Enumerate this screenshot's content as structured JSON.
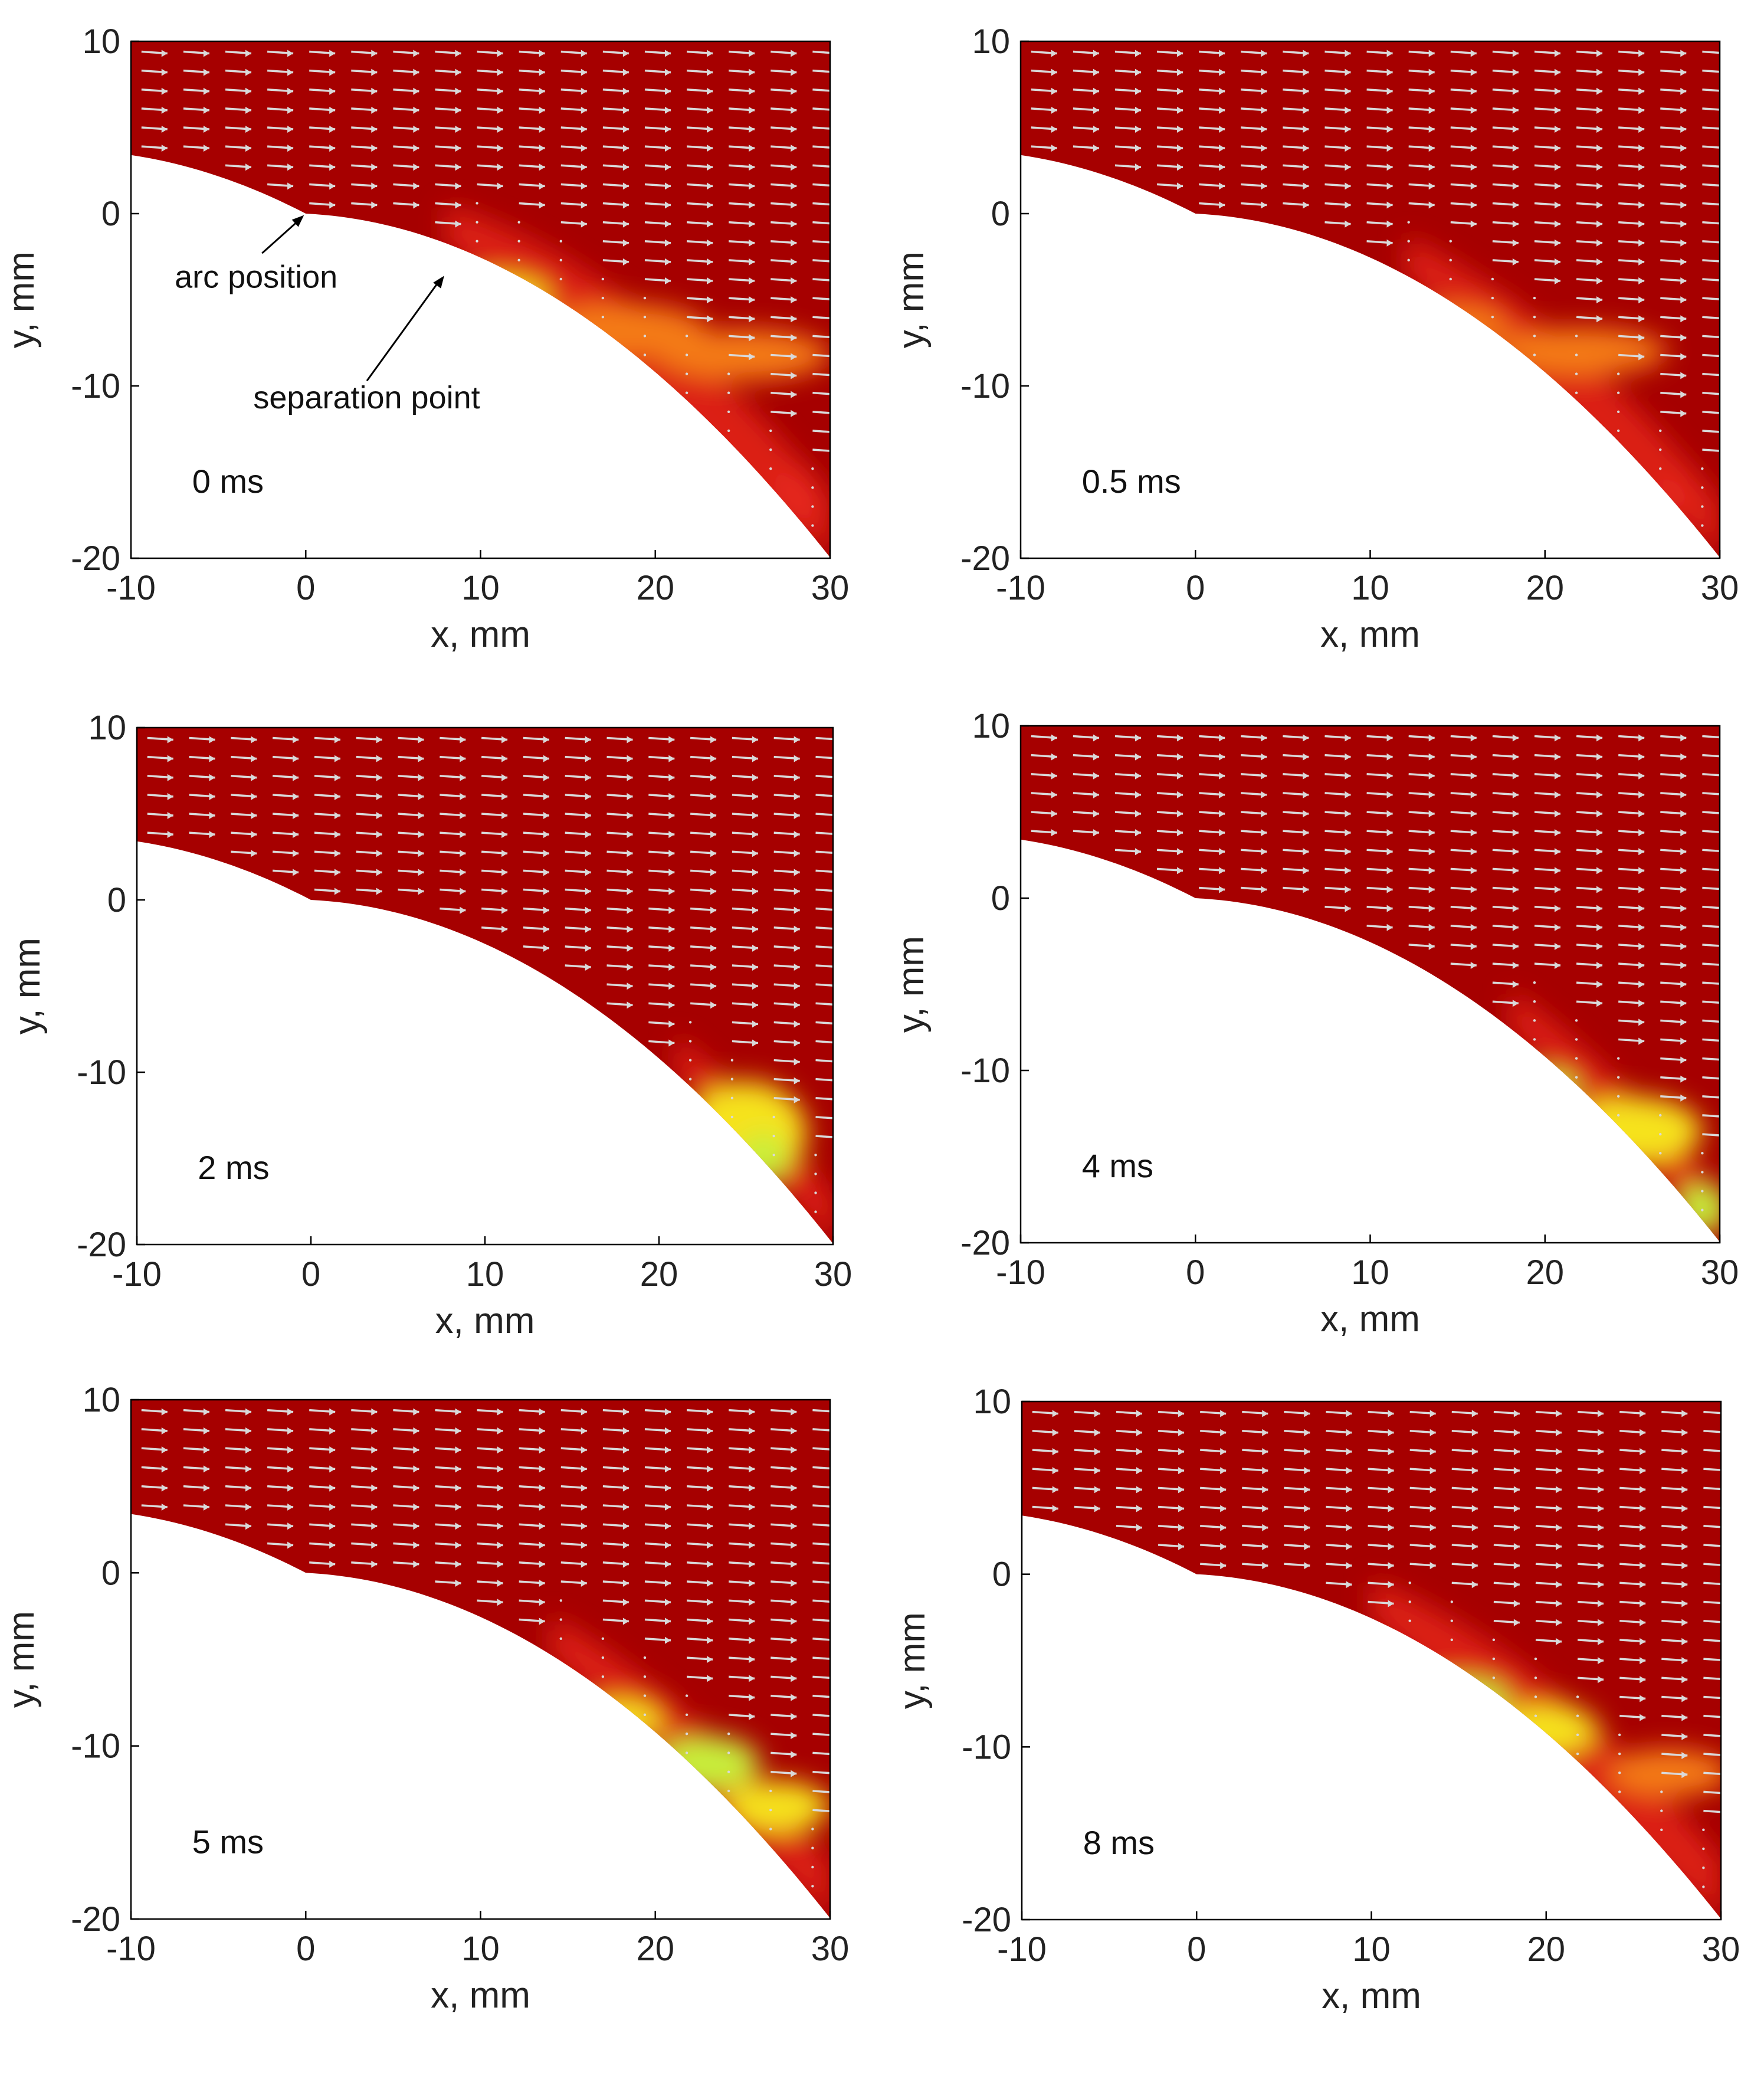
{
  "figure": {
    "description_free": true,
    "colors": {
      "background_field": "#a60000",
      "vector": "#d9d9d9",
      "hot_red": "#e5261a",
      "orange": "#f47a12",
      "yellow": "#f6e21c",
      "green_yellow": "#c8ee3a",
      "frame": "#000000"
    }
  },
  "chart_data": [
    {
      "type": "heatmap",
      "time_label": "0 ms",
      "xlabel": "x, mm",
      "ylabel": "y, mm",
      "xlim": [
        -10,
        30
      ],
      "ylim": [
        -20,
        10
      ],
      "xticks": [
        "-10",
        "0",
        "10",
        "20",
        "30"
      ],
      "yticks": [
        "-20",
        "-10",
        "0",
        "10"
      ],
      "annotations": [
        {
          "text": "arc position",
          "x": 0,
          "y": 0
        },
        {
          "text": "separation point",
          "x": 8,
          "y": -3.5
        }
      ],
      "wake": {
        "start_x": 8,
        "blobs": [
          [
            11,
            -4.8,
            3,
            1.2,
            "yellow"
          ],
          [
            18,
            -6.8,
            5,
            1.6,
            "orange"
          ],
          [
            25,
            -8.2,
            5,
            1.5,
            "orange"
          ],
          [
            28,
            -16.5,
            1.5,
            1.8,
            "hot_red"
          ]
        ]
      }
    },
    {
      "type": "heatmap",
      "time_label": "0.5 ms",
      "xlabel": "x, mm",
      "ylabel": "y, mm",
      "xlim": [
        -10,
        30
      ],
      "ylim": [
        -20,
        10
      ],
      "xticks": [
        "-10",
        "0",
        "10",
        "20",
        "30"
      ],
      "yticks": [
        "-20",
        "-10",
        "0",
        "10"
      ],
      "annotations": [],
      "wake": {
        "start_x": 12,
        "blobs": [
          [
            15,
            -6.5,
            3,
            1.2,
            "orange"
          ],
          [
            22,
            -8,
            5,
            1.4,
            "orange"
          ],
          [
            27,
            -16.5,
            1.2,
            1.2,
            "hot_red"
          ]
        ]
      }
    },
    {
      "type": "heatmap",
      "time_label": "2 ms",
      "xlabel": "x, mm",
      "ylabel": "y, mm",
      "xlim": [
        -10,
        30
      ],
      "ylim": [
        -20,
        10
      ],
      "xticks": [
        "-10",
        "0",
        "10",
        "20",
        "30"
      ],
      "yticks": [
        "-20",
        "-10",
        "0",
        "10"
      ],
      "annotations": [],
      "wake": {
        "start_x": 21,
        "blobs": [
          [
            25,
            -13.5,
            3.5,
            3,
            "yellow"
          ],
          [
            26,
            -15,
            1.5,
            1.5,
            "green_yellow"
          ]
        ]
      }
    },
    {
      "type": "heatmap",
      "time_label": "4 ms",
      "xlabel": "x, mm",
      "ylabel": "y, mm",
      "xlim": [
        -10,
        30
      ],
      "ylim": [
        -20,
        10
      ],
      "xticks": [
        "-10",
        "0",
        "10",
        "20",
        "30"
      ],
      "yticks": [
        "-20",
        "-10",
        "0",
        "10"
      ],
      "annotations": [],
      "wake": {
        "start_x": 18,
        "blobs": [
          [
            20,
            -11,
            2,
            1,
            "green_yellow"
          ],
          [
            25,
            -13.5,
            4,
            2,
            "yellow"
          ],
          [
            29,
            -18,
            1.5,
            1.5,
            "green_yellow"
          ]
        ]
      }
    },
    {
      "type": "heatmap",
      "time_label": "5 ms",
      "xlabel": "x, mm",
      "ylabel": "y, mm",
      "xlim": [
        -10,
        30
      ],
      "ylim": [
        -20,
        10
      ],
      "xticks": [
        "-10",
        "0",
        "10",
        "20",
        "30"
      ],
      "yticks": [
        "-20",
        "-10",
        "0",
        "10"
      ],
      "annotations": [],
      "wake": {
        "start_x": 14,
        "blobs": [
          [
            18,
            -8.5,
            2.5,
            1.2,
            "yellow"
          ],
          [
            23,
            -11,
            3,
            1.6,
            "green_yellow"
          ],
          [
            27,
            -13.5,
            3,
            1.5,
            "yellow"
          ]
        ]
      }
    },
    {
      "type": "heatmap",
      "time_label": "8 ms",
      "xlabel": "x, mm",
      "ylabel": "y, mm",
      "xlim": [
        -10,
        30
      ],
      "ylim": [
        -20,
        10
      ],
      "xticks": [
        "-10",
        "0",
        "10",
        "20",
        "30"
      ],
      "yticks": [
        "-20",
        "-10",
        "0",
        "10"
      ],
      "annotations": [],
      "wake": {
        "start_x": 10,
        "blobs": [
          [
            15,
            -7.2,
            3,
            1.2,
            "green_yellow"
          ],
          [
            20,
            -9,
            3,
            1.5,
            "yellow"
          ],
          [
            27,
            -11.5,
            3.5,
            1.4,
            "orange"
          ]
        ]
      }
    }
  ]
}
